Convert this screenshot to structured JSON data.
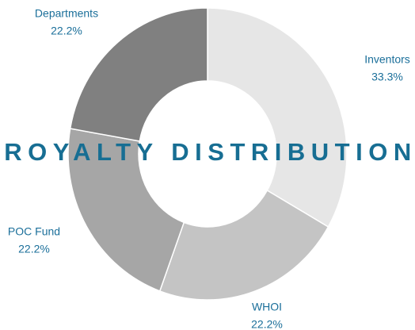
{
  "chart_data": {
    "type": "donut",
    "title": "ROYALTY DISTRIBUTION",
    "categories": [
      "Inventors",
      "WHOI",
      "POC Fund",
      "Departments"
    ],
    "values": [
      33.3,
      22.2,
      22.2,
      22.2
    ],
    "value_labels": [
      "33.3%",
      "22.2%",
      "22.2%",
      "22.2%"
    ],
    "colors": [
      "#e6e6e6",
      "#c4c4c4",
      "#a6a6a6",
      "#808080"
    ]
  }
}
